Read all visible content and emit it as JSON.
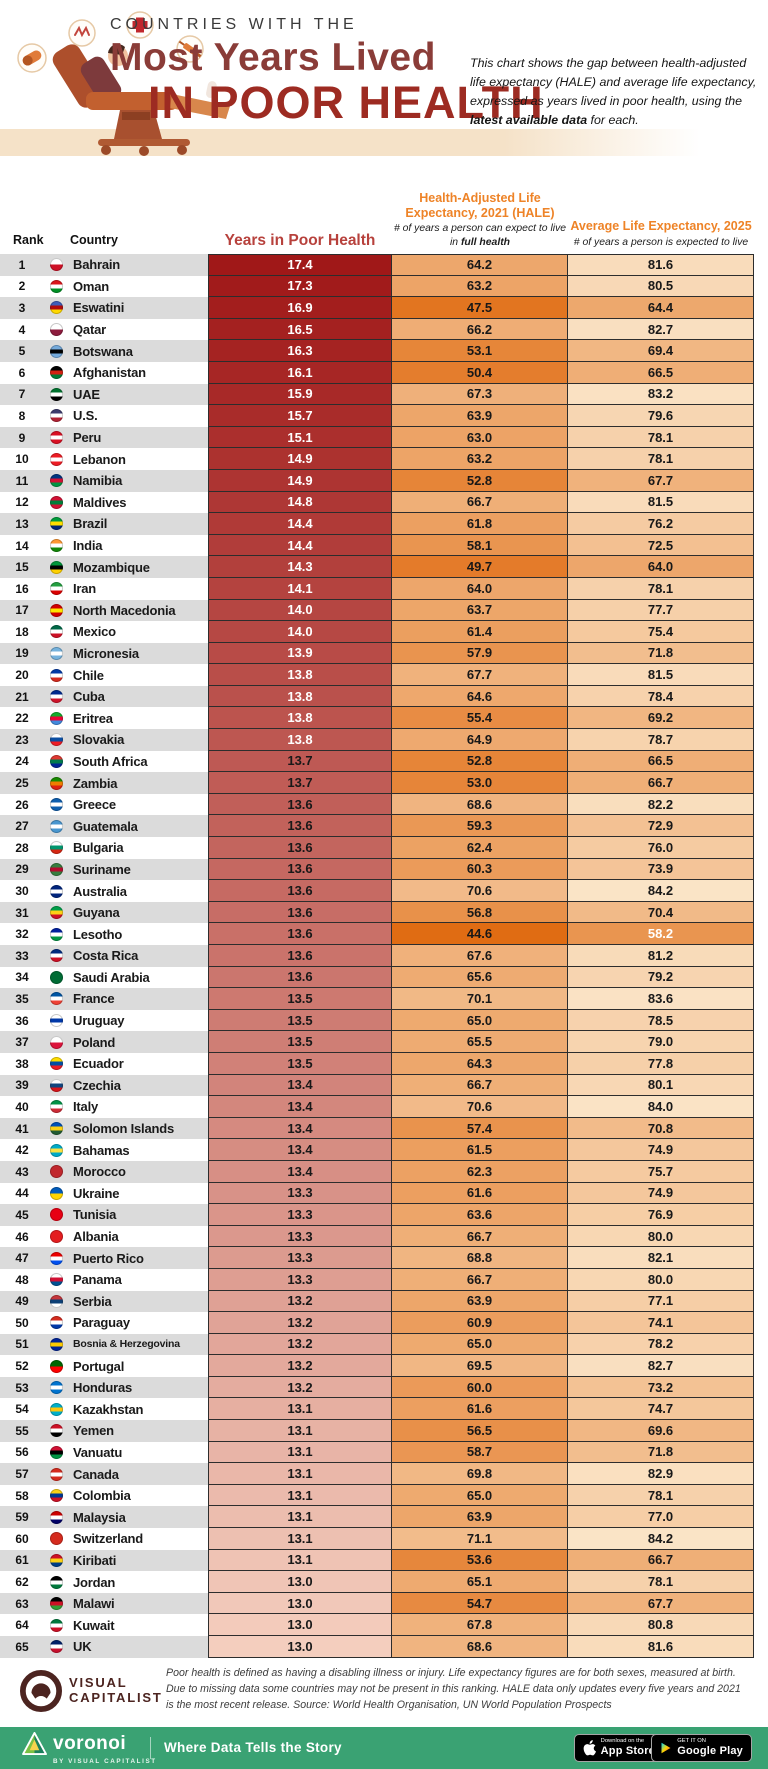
{
  "header": {
    "kicker": "COUNTRIES WITH THE",
    "title_line1": "Most Years Lived",
    "title_line2": "IN POOR HEALTH",
    "description_pre": "This chart shows the gap between health-adjusted life expectancy (HALE) and average life expectancy, expressed as years lived in poor health, using the ",
    "description_bold": "latest available data",
    "description_post": " for each.",
    "illustration_icons": [
      "pill-icon",
      "pain-icon",
      "medical-cross-icon",
      "syringe-icon",
      "reclining-patient-chair-illustration"
    ]
  },
  "table": {
    "columns": {
      "rank": "Rank",
      "country": "Country",
      "years": "Years in Poor Health",
      "hale_title": "Health-Adjusted Life Expectancy, 2021 (HALE)",
      "hale_sub_pre": "# of years a person can expect to live in ",
      "hale_sub_bold": "full health",
      "avg_title": "Average Life Expectancy, 2025",
      "avg_sub": "# of years a person is expected to live"
    }
  },
  "colors": {
    "accent_orange": "#EE8327",
    "header_red": "#B7413C",
    "title_red": "#9D2B22",
    "title_soft_red": "#8A3C38",
    "stripe_gray": "#DBDBDB",
    "green_bar": "#3AA273",
    "years_scale_from": "#A01818",
    "years_scale_to": "#F4CEBE",
    "life_scale_from": "#E06A10",
    "life_scale_to": "#FBE6CA",
    "life_scale_vmin": 44,
    "life_scale_vmax": 85,
    "years_white_text_min": 13.8,
    "avg_white_text_below": 60
  },
  "chart_data": {
    "type": "table",
    "title": "Countries with the Most Years Lived in Poor Health",
    "columns": [
      "Rank",
      "Country",
      "Years in Poor Health",
      "Health-Adjusted Life Expectancy, 2021 (HALE)",
      "Average Life Expectancy, 2025"
    ],
    "rows": [
      {
        "rank": 1,
        "country": "Bahrain",
        "years": 17.4,
        "hale": 64.2,
        "avg": 81.6,
        "flag": [
          "#ffffff",
          "#ce1126"
        ]
      },
      {
        "rank": 2,
        "country": "Oman",
        "years": 17.3,
        "hale": 63.2,
        "avg": 80.5,
        "flag": [
          "#db161b",
          "#ffffff",
          "#009025"
        ]
      },
      {
        "rank": 3,
        "country": "Eswatini",
        "years": 16.9,
        "hale": 47.5,
        "avg": 64.4,
        "flag": [
          "#3e5eb9",
          "#b10c0c",
          "#ffd900"
        ]
      },
      {
        "rank": 4,
        "country": "Qatar",
        "years": 16.5,
        "hale": 66.2,
        "avg": 82.7,
        "flag": [
          "#ffffff",
          "#8d1b3d"
        ]
      },
      {
        "rank": 5,
        "country": "Botswana",
        "years": 16.3,
        "hale": 53.1,
        "avg": 69.4,
        "flag": [
          "#75aadb",
          "#000000",
          "#75aadb"
        ]
      },
      {
        "rank": 6,
        "country": "Afghanistan",
        "years": 16.1,
        "hale": 50.4,
        "avg": 66.5,
        "flag": [
          "#000000",
          "#d32011",
          "#007a36"
        ]
      },
      {
        "rank": 7,
        "country": "UAE",
        "years": 15.9,
        "hale": 67.3,
        "avg": 83.2,
        "flag": [
          "#00732f",
          "#ffffff",
          "#000000"
        ]
      },
      {
        "rank": 8,
        "country": "U.S.",
        "years": 15.7,
        "hale": 63.9,
        "avg": 79.6,
        "flag": [
          "#3c3b6e",
          "#ffffff",
          "#b22234"
        ]
      },
      {
        "rank": 9,
        "country": "Peru",
        "years": 15.1,
        "hale": 63.0,
        "avg": 78.1,
        "flag": [
          "#d91023",
          "#ffffff",
          "#d91023"
        ]
      },
      {
        "rank": 10,
        "country": "Lebanon",
        "years": 14.9,
        "hale": 63.2,
        "avg": 78.1,
        "flag": [
          "#ed1c24",
          "#ffffff",
          "#ed1c24"
        ]
      },
      {
        "rank": 11,
        "country": "Namibia",
        "years": 14.9,
        "hale": 52.8,
        "avg": 67.7,
        "flag": [
          "#003580",
          "#d21034",
          "#009543"
        ]
      },
      {
        "rank": 12,
        "country": "Maldives",
        "years": 14.8,
        "hale": 66.7,
        "avg": 81.5,
        "flag": [
          "#d21034",
          "#007e3a",
          "#d21034"
        ]
      },
      {
        "rank": 13,
        "country": "Brazil",
        "years": 14.4,
        "hale": 61.8,
        "avg": 76.2,
        "flag": [
          "#009c3b",
          "#ffdf00",
          "#002776"
        ]
      },
      {
        "rank": 14,
        "country": "India",
        "years": 14.4,
        "hale": 58.1,
        "avg": 72.5,
        "flag": [
          "#ff9933",
          "#ffffff",
          "#138808"
        ]
      },
      {
        "rank": 15,
        "country": "Mozambique",
        "years": 14.3,
        "hale": 49.7,
        "avg": 64.0,
        "flag": [
          "#009639",
          "#000000",
          "#ffd100"
        ]
      },
      {
        "rank": 16,
        "country": "Iran",
        "years": 14.1,
        "hale": 64.0,
        "avg": 78.1,
        "flag": [
          "#239f40",
          "#ffffff",
          "#da0000"
        ]
      },
      {
        "rank": 17,
        "country": "North Macedonia",
        "years": 14.0,
        "hale": 63.7,
        "avg": 77.7,
        "flag": [
          "#d20000",
          "#ffe600",
          "#d20000"
        ]
      },
      {
        "rank": 18,
        "country": "Mexico",
        "years": 14.0,
        "hale": 61.4,
        "avg": 75.4,
        "flag": [
          "#006847",
          "#ffffff",
          "#ce1126"
        ]
      },
      {
        "rank": 19,
        "country": "Micronesia",
        "years": 13.9,
        "hale": 57.9,
        "avg": 71.8,
        "flag": [
          "#75b2dd",
          "#ffffff",
          "#75b2dd"
        ]
      },
      {
        "rank": 20,
        "country": "Chile",
        "years": 13.8,
        "hale": 67.7,
        "avg": 81.5,
        "flag": [
          "#0039a6",
          "#ffffff",
          "#d52b1e"
        ]
      },
      {
        "rank": 21,
        "country": "Cuba",
        "years": 13.8,
        "hale": 64.6,
        "avg": 78.4,
        "flag": [
          "#002a8f",
          "#ffffff",
          "#cf142b"
        ]
      },
      {
        "rank": 22,
        "country": "Eritrea",
        "years": 13.8,
        "hale": 55.4,
        "avg": 69.2,
        "flag": [
          "#12ad2b",
          "#ea0437",
          "#4189dd"
        ]
      },
      {
        "rank": 23,
        "country": "Slovakia",
        "years": 13.8,
        "hale": 64.9,
        "avg": 78.7,
        "flag": [
          "#ffffff",
          "#0b4ea2",
          "#ee1c25"
        ]
      },
      {
        "rank": 24,
        "country": "South Africa",
        "years": 13.7,
        "hale": 52.8,
        "avg": 66.5,
        "flag": [
          "#de3831",
          "#007a4d",
          "#002395"
        ]
      },
      {
        "rank": 25,
        "country": "Zambia",
        "years": 13.7,
        "hale": 53.0,
        "avg": 66.7,
        "flag": [
          "#198a00",
          "#ef7d00",
          "#de2010"
        ]
      },
      {
        "rank": 26,
        "country": "Greece",
        "years": 13.6,
        "hale": 68.6,
        "avg": 82.2,
        "flag": [
          "#0d5eaf",
          "#ffffff",
          "#0d5eaf"
        ]
      },
      {
        "rank": 27,
        "country": "Guatemala",
        "years": 13.6,
        "hale": 59.3,
        "avg": 72.9,
        "flag": [
          "#4997d0",
          "#ffffff",
          "#4997d0"
        ]
      },
      {
        "rank": 28,
        "country": "Bulgaria",
        "years": 13.6,
        "hale": 62.4,
        "avg": 76.0,
        "flag": [
          "#ffffff",
          "#00966e",
          "#d62612"
        ]
      },
      {
        "rank": 29,
        "country": "Suriname",
        "years": 13.6,
        "hale": 60.3,
        "avg": 73.9,
        "flag": [
          "#377e3f",
          "#b40a2d",
          "#377e3f"
        ]
      },
      {
        "rank": 30,
        "country": "Australia",
        "years": 13.6,
        "hale": 70.6,
        "avg": 84.2,
        "flag": [
          "#00247d",
          "#ffffff",
          "#00247d"
        ]
      },
      {
        "rank": 31,
        "country": "Guyana",
        "years": 13.6,
        "hale": 56.8,
        "avg": 70.4,
        "flag": [
          "#009e49",
          "#fcd116",
          "#ce1126"
        ]
      },
      {
        "rank": 32,
        "country": "Lesotho",
        "years": 13.6,
        "hale": 44.6,
        "avg": 58.2,
        "flag": [
          "#00209f",
          "#ffffff",
          "#009543"
        ]
      },
      {
        "rank": 33,
        "country": "Costa Rica",
        "years": 13.6,
        "hale": 67.6,
        "avg": 81.2,
        "flag": [
          "#002b7f",
          "#ffffff",
          "#ce1126"
        ]
      },
      {
        "rank": 34,
        "country": "Saudi Arabia",
        "years": 13.6,
        "hale": 65.6,
        "avg": 79.2,
        "flag": [
          "#006c35"
        ]
      },
      {
        "rank": 35,
        "country": "France",
        "years": 13.5,
        "hale": 70.1,
        "avg": 83.6,
        "flag": [
          "#0055a4",
          "#ffffff",
          "#ef4135"
        ]
      },
      {
        "rank": 36,
        "country": "Uruguay",
        "years": 13.5,
        "hale": 65.0,
        "avg": 78.5,
        "flag": [
          "#ffffff",
          "#0038a8",
          "#ffffff"
        ]
      },
      {
        "rank": 37,
        "country": "Poland",
        "years": 13.5,
        "hale": 65.5,
        "avg": 79.0,
        "flag": [
          "#ffffff",
          "#dc143c"
        ]
      },
      {
        "rank": 38,
        "country": "Ecuador",
        "years": 13.5,
        "hale": 64.3,
        "avg": 77.8,
        "flag": [
          "#ffdd00",
          "#034ea2",
          "#ed1c24"
        ]
      },
      {
        "rank": 39,
        "country": "Czechia",
        "years": 13.4,
        "hale": 66.7,
        "avg": 80.1,
        "flag": [
          "#ffffff",
          "#11457e",
          "#d7141a"
        ]
      },
      {
        "rank": 40,
        "country": "Italy",
        "years": 13.4,
        "hale": 70.6,
        "avg": 84.0,
        "flag": [
          "#009246",
          "#ffffff",
          "#ce2b37"
        ]
      },
      {
        "rank": 41,
        "country": "Solomon Islands",
        "years": 13.4,
        "hale": 57.4,
        "avg": 70.8,
        "flag": [
          "#0051ba",
          "#fcd116",
          "#215b33"
        ]
      },
      {
        "rank": 42,
        "country": "Bahamas",
        "years": 13.4,
        "hale": 61.5,
        "avg": 74.9,
        "flag": [
          "#00abc9",
          "#fae042",
          "#00abc9"
        ]
      },
      {
        "rank": 43,
        "country": "Morocco",
        "years": 13.4,
        "hale": 62.3,
        "avg": 75.7,
        "flag": [
          "#c1272d"
        ]
      },
      {
        "rank": 44,
        "country": "Ukraine",
        "years": 13.3,
        "hale": 61.6,
        "avg": 74.9,
        "flag": [
          "#005bbb",
          "#ffd500"
        ]
      },
      {
        "rank": 45,
        "country": "Tunisia",
        "years": 13.3,
        "hale": 63.6,
        "avg": 76.9,
        "flag": [
          "#e70013"
        ]
      },
      {
        "rank": 46,
        "country": "Albania",
        "years": 13.3,
        "hale": 66.7,
        "avg": 80.0,
        "flag": [
          "#e41e20"
        ]
      },
      {
        "rank": 47,
        "country": "Puerto Rico",
        "years": 13.3,
        "hale": 68.8,
        "avg": 82.1,
        "flag": [
          "#ed0000",
          "#ffffff",
          "#0050f0"
        ]
      },
      {
        "rank": 48,
        "country": "Panama",
        "years": 13.3,
        "hale": 66.7,
        "avg": 80.0,
        "flag": [
          "#ffffff",
          "#d21034",
          "#005293"
        ]
      },
      {
        "rank": 49,
        "country": "Serbia",
        "years": 13.2,
        "hale": 63.9,
        "avg": 77.1,
        "flag": [
          "#c6363c",
          "#0c4076",
          "#ffffff"
        ]
      },
      {
        "rank": 50,
        "country": "Paraguay",
        "years": 13.2,
        "hale": 60.9,
        "avg": 74.1,
        "flag": [
          "#d52b1e",
          "#ffffff",
          "#0038a8"
        ]
      },
      {
        "rank": 51,
        "country": "Bosnia & Herzegovina",
        "years": 13.2,
        "hale": 65.0,
        "avg": 78.2,
        "flag": [
          "#002395",
          "#fecb00",
          "#002395"
        ]
      },
      {
        "rank": 52,
        "country": "Portugal",
        "years": 13.2,
        "hale": 69.5,
        "avg": 82.7,
        "flag": [
          "#006600",
          "#ff0000"
        ]
      },
      {
        "rank": 53,
        "country": "Honduras",
        "years": 13.2,
        "hale": 60.0,
        "avg": 73.2,
        "flag": [
          "#0073cf",
          "#ffffff",
          "#0073cf"
        ]
      },
      {
        "rank": 54,
        "country": "Kazakhstan",
        "years": 13.1,
        "hale": 61.6,
        "avg": 74.7,
        "flag": [
          "#00afca",
          "#fec50c",
          "#00afca"
        ]
      },
      {
        "rank": 55,
        "country": "Yemen",
        "years": 13.1,
        "hale": 56.5,
        "avg": 69.6,
        "flag": [
          "#ce1126",
          "#ffffff",
          "#000000"
        ]
      },
      {
        "rank": 56,
        "country": "Vanuatu",
        "years": 13.1,
        "hale": 58.7,
        "avg": 71.8,
        "flag": [
          "#d21034",
          "#000000",
          "#009543"
        ]
      },
      {
        "rank": 57,
        "country": "Canada",
        "years": 13.1,
        "hale": 69.8,
        "avg": 82.9,
        "flag": [
          "#d52b1e",
          "#ffffff",
          "#d52b1e"
        ]
      },
      {
        "rank": 58,
        "country": "Colombia",
        "years": 13.1,
        "hale": 65.0,
        "avg": 78.1,
        "flag": [
          "#fcd116",
          "#003893",
          "#ce1126"
        ]
      },
      {
        "rank": 59,
        "country": "Malaysia",
        "years": 13.1,
        "hale": 63.9,
        "avg": 77.0,
        "flag": [
          "#cc0001",
          "#ffffff",
          "#010066"
        ]
      },
      {
        "rank": 60,
        "country": "Switzerland",
        "years": 13.1,
        "hale": 71.1,
        "avg": 84.2,
        "flag": [
          "#d52b1e"
        ]
      },
      {
        "rank": 61,
        "country": "Kiribati",
        "years": 13.1,
        "hale": 53.6,
        "avg": 66.7,
        "flag": [
          "#ce1126",
          "#fcd116",
          "#003f87"
        ]
      },
      {
        "rank": 62,
        "country": "Jordan",
        "years": 13.0,
        "hale": 65.1,
        "avg": 78.1,
        "flag": [
          "#000000",
          "#ffffff",
          "#007a3d"
        ]
      },
      {
        "rank": 63,
        "country": "Malawi",
        "years": 13.0,
        "hale": 54.7,
        "avg": 67.7,
        "flag": [
          "#000000",
          "#ce1126",
          "#339e35"
        ]
      },
      {
        "rank": 64,
        "country": "Kuwait",
        "years": 13.0,
        "hale": 67.8,
        "avg": 80.8,
        "flag": [
          "#007a3d",
          "#ffffff",
          "#ce1126"
        ]
      },
      {
        "rank": 65,
        "country": "UK",
        "years": 13.0,
        "hale": 68.6,
        "avg": 81.6,
        "flag": [
          "#012169",
          "#ffffff",
          "#c8102e"
        ]
      }
    ]
  },
  "footer": {
    "note": "Poor health is defined as having a disabling illness or injury. Life expectancy figures are for both sexes, measured at birth. Due to missing data some countries may not be present in this ranking. HALE data only updates every five years and 2021 is the most recent release. Source: World Health Organisation, UN World Population Prospects",
    "brand_line1": "VISUAL",
    "brand_line2": "CAPITALIST",
    "bar": {
      "logo": "voronoi",
      "logo_sub": "BY VISUAL CAPITALIST",
      "tagline": "Where Data Tells the Story",
      "appstore_top": "Download on the",
      "appstore_main": "App Store",
      "gplay_top": "GET IT ON",
      "gplay_main": "Google Play"
    }
  }
}
